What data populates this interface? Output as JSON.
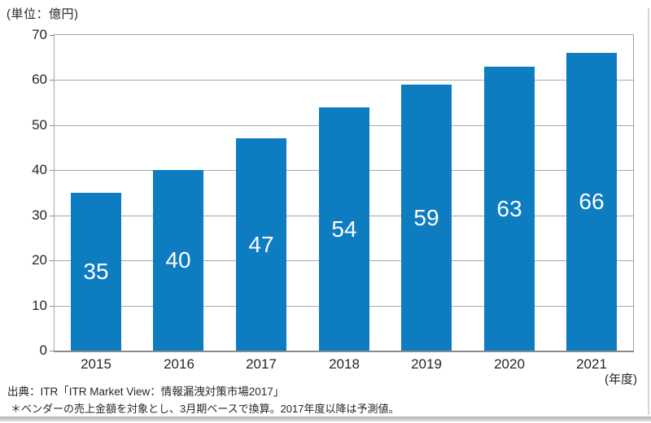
{
  "chart_data": {
    "type": "bar",
    "categories": [
      "2015",
      "2016",
      "2017",
      "2018",
      "2019",
      "2020",
      "2021"
    ],
    "values": [
      35,
      40,
      47,
      54,
      59,
      63,
      66
    ],
    "title": "",
    "xlabel": "(年度)",
    "ylabel": "(単位：億円)",
    "ylim": [
      0,
      70
    ],
    "ytick_step": 10,
    "grid": true,
    "legend": "none",
    "bar_color": "#0d7cc1",
    "bar_label_color": "#ffffff",
    "gridline_color": "#a8a8a8",
    "axis_color": "#8a8a8a"
  },
  "footer": {
    "source": "出典：ITR「ITR Market View：情報漏洩対策市場2017」",
    "note": "＊ベンダーの売上金額を対象とし、3月期ベースで換算。2017年度以降は予測値。"
  }
}
